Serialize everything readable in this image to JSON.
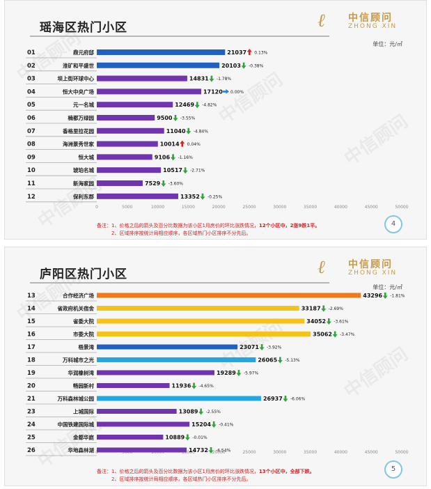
{
  "slides": [
    {
      "title": "瑶海区热门小区",
      "unit": "单位：元/㎡",
      "page": "4",
      "note_prefix": "备注：",
      "note_line1_a": "1、价格之后的箭头及百分比数据为该小区1月房价的环比涨跌情况，",
      "note_line1_b": "12个小区中，2涨9跌1平。",
      "note_line2": "2、区域排序按统计局相应顺序，各区域热门小区排序不分先后。"
    },
    {
      "title": "庐阳区热门小区",
      "unit": "单位：元/㎡",
      "page": "5",
      "note_prefix": "备注：",
      "note_line1_a": "1、价格之后的箭头及百分比数据为该小区1月房价的环比涨跌情况，",
      "note_line1_b": "13个小区中，全部下跌。",
      "note_line2": "2、区域排序按统计局相应顺序，各区域热门小区排序不分先后。"
    }
  ],
  "logo": {
    "cn": "中信顾问",
    "en": "ZHONG XIN",
    "mark": "ℓ"
  },
  "watermark": "中信顾问",
  "colors": {
    "purple": "#7034b0",
    "blue": "#1f62c2",
    "orange": "#f07a18",
    "yellow": "#f5c21a",
    "light_blue": "#21a8e0",
    "up": "#e02020",
    "down": "#2fa53a",
    "flat": "#2b7fd6"
  },
  "chart_data": [
    {
      "type": "bar",
      "orientation": "horizontal",
      "xlim": [
        0,
        50000
      ],
      "x_ticks": [
        "0",
        "5000",
        "10000",
        "15000",
        "20000",
        "25000",
        "30000",
        "35000",
        "40000",
        "45000",
        "50000"
      ],
      "rows": [
        {
          "rank": "01",
          "name": "鼎元府邸",
          "value": 21037,
          "dir": "up",
          "change": "0.13%",
          "color": "blue"
        },
        {
          "rank": "02",
          "name": "淮矿和平盛世",
          "value": 20103,
          "dir": "down",
          "change": "-0.38%",
          "color": "blue"
        },
        {
          "rank": "03",
          "name": "坝上街环球中心",
          "value": 14831,
          "dir": "down",
          "change": "-1.78%",
          "color": "purple"
        },
        {
          "rank": "04",
          "name": "恒大中央广场",
          "value": 17120,
          "dir": "flat",
          "change": "0.00%",
          "color": "purple"
        },
        {
          "rank": "05",
          "name": "元一名城",
          "value": 12469,
          "dir": "down",
          "change": "-4.82%",
          "color": "purple"
        },
        {
          "rank": "06",
          "name": "楠都万绿园",
          "value": 9500,
          "dir": "down",
          "change": "-3.55%",
          "color": "purple"
        },
        {
          "rank": "07",
          "name": "香格里拉花园",
          "value": 11040,
          "dir": "down",
          "change": "-4.84%",
          "color": "purple"
        },
        {
          "rank": "08",
          "name": "海洲景秀世家",
          "value": 10014,
          "dir": "up",
          "change": "0.04%",
          "color": "purple"
        },
        {
          "rank": "09",
          "name": "恒大城",
          "value": 9106,
          "dir": "down",
          "change": "-1.16%",
          "color": "purple"
        },
        {
          "rank": "10",
          "name": "琥珀名城",
          "value": 10517,
          "dir": "down",
          "change": "-2.71%",
          "color": "purple"
        },
        {
          "rank": "11",
          "name": "新海家园",
          "value": 7529,
          "dir": "down",
          "change": "-3.60%",
          "color": "purple"
        },
        {
          "rank": "12",
          "name": "保利东郡",
          "value": 13352,
          "dir": "down",
          "change": "-0.25%",
          "color": "purple"
        }
      ]
    },
    {
      "type": "bar",
      "orientation": "horizontal",
      "xlim": [
        0,
        50000
      ],
      "x_ticks": [
        "0",
        "5000",
        "10000",
        "15000",
        "20000",
        "25000",
        "30000",
        "35000",
        "40000",
        "45000",
        "50000"
      ],
      "rows": [
        {
          "rank": "13",
          "name": "合作经济广场",
          "value": 43296,
          "dir": "down",
          "change": "-1.81%",
          "color": "orange"
        },
        {
          "rank": "14",
          "name": "省政府机关宿舍",
          "value": 33187,
          "dir": "down",
          "change": "-2.69%",
          "color": "yellow"
        },
        {
          "rank": "15",
          "name": "省委大院",
          "value": 34052,
          "dir": "down",
          "change": "-3.61%",
          "color": "yellow"
        },
        {
          "rank": "16",
          "name": "市委大院",
          "value": 35062,
          "dir": "down",
          "change": "-3.47%",
          "color": "yellow"
        },
        {
          "rank": "17",
          "name": "梧景湾",
          "value": 23071,
          "dir": "down",
          "change": "-3.92%",
          "color": "blue"
        },
        {
          "rank": "18",
          "name": "万科城市之光",
          "value": 26065,
          "dir": "down",
          "change": "-5.13%",
          "color": "light_blue"
        },
        {
          "rank": "19",
          "name": "华润橡树湾",
          "value": 19289,
          "dir": "down",
          "change": "-5.97%",
          "color": "purple"
        },
        {
          "rank": "20",
          "name": "畅园新村",
          "value": 11936,
          "dir": "down",
          "change": "-4.65%",
          "color": "purple"
        },
        {
          "rank": "21",
          "name": "万科森林城公园",
          "value": 26937,
          "dir": "down",
          "change": "-6.06%",
          "color": "light_blue"
        },
        {
          "rank": "23",
          "name": "上城国际",
          "value": 13089,
          "dir": "down",
          "change": "-2.55%",
          "color": "purple"
        },
        {
          "rank": "24",
          "name": "中国铁建国际城",
          "value": 15204,
          "dir": "down",
          "change": "-0.41%",
          "color": "purple"
        },
        {
          "rank": "25",
          "name": "金都华庭",
          "value": 10889,
          "dir": "down",
          "change": "-0.01%",
          "color": "purple"
        },
        {
          "rank": "26",
          "name": "华地森林湖",
          "value": 14732,
          "dir": "down",
          "change": "-6.54%",
          "color": "purple"
        }
      ]
    }
  ]
}
